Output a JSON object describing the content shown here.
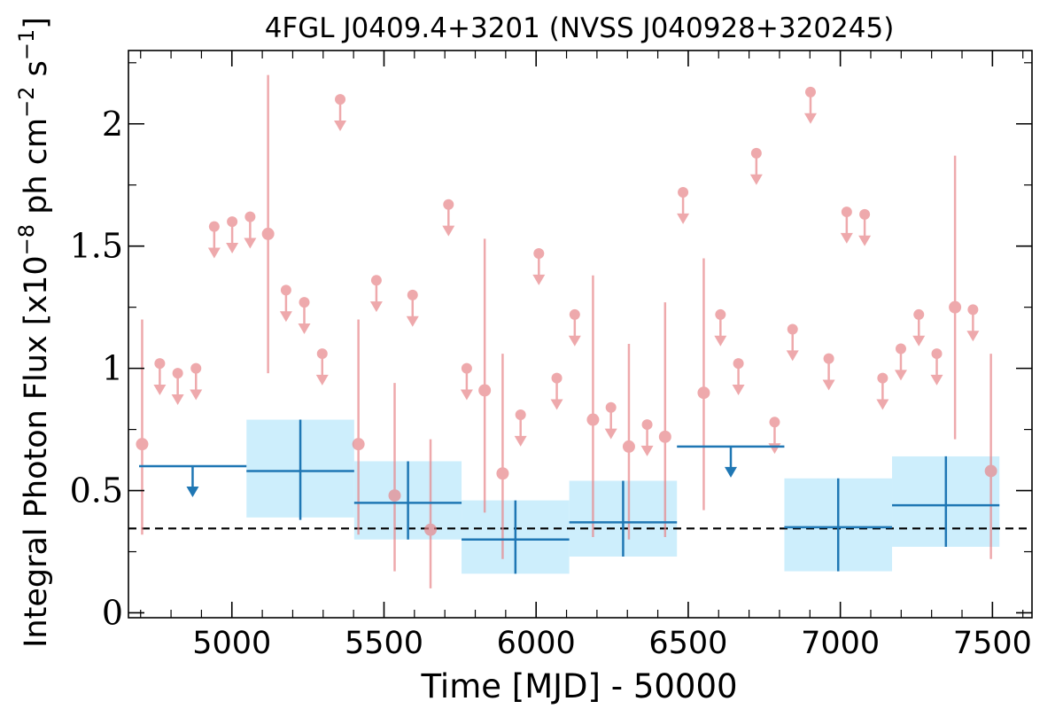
{
  "chart_data": {
    "type": "scatter",
    "title": "4FGL J0409.4+3201 (NVSS J040928+320245)",
    "xlabel": "Time [MJD] - 50000",
    "ylabel": "Integral Photon Flux [x10",
    "ylabel_exp1": "−8",
    "ylabel_mid": " ph cm",
    "ylabel_exp2": "−2",
    "ylabel_mid2": " s",
    "ylabel_exp3": "−1",
    "ylabel_end": "]",
    "xlim": [
      4660,
      7630
    ],
    "ylim": [
      -0.02,
      2.3
    ],
    "xticks": [
      5000,
      5500,
      6000,
      6500,
      7000,
      7500
    ],
    "xtick_labels": [
      "5000",
      "5500",
      "6000",
      "6500",
      "7000",
      "7500"
    ],
    "yticks": [
      0,
      0.5,
      1,
      1.5,
      2
    ],
    "ytick_labels": [
      "0",
      "0.5",
      "1",
      "1.5",
      "2"
    ],
    "reference_line": 0.345,
    "colors": {
      "short_bin": "#e8868a",
      "long_bin": "#1f77b4",
      "band": "#cdeefc",
      "reference": "#000000"
    },
    "short_bin_points": [
      {
        "x": 4705,
        "y": 0.69,
        "ul": false,
        "ylo": 0.32,
        "yhi": 1.2
      },
      {
        "x": 4763,
        "y": 1.02,
        "ul": true
      },
      {
        "x": 4822,
        "y": 0.98,
        "ul": true
      },
      {
        "x": 4882,
        "y": 1.0,
        "ul": true
      },
      {
        "x": 4942,
        "y": 1.58,
        "ul": true
      },
      {
        "x": 5001,
        "y": 1.6,
        "ul": true
      },
      {
        "x": 5060,
        "y": 1.62,
        "ul": true
      },
      {
        "x": 5119,
        "y": 1.55,
        "ul": false,
        "ylo": 0.98,
        "yhi": 2.2
      },
      {
        "x": 5178,
        "y": 1.32,
        "ul": true
      },
      {
        "x": 5238,
        "y": 1.27,
        "ul": true
      },
      {
        "x": 5297,
        "y": 1.06,
        "ul": true
      },
      {
        "x": 5356,
        "y": 2.1,
        "ul": true
      },
      {
        "x": 5416,
        "y": 0.69,
        "ul": false,
        "ylo": 0.32,
        "yhi": 1.2
      },
      {
        "x": 5475,
        "y": 1.36,
        "ul": true
      },
      {
        "x": 5535,
        "y": 0.48,
        "ul": false,
        "ylo": 0.17,
        "yhi": 0.94
      },
      {
        "x": 5594,
        "y": 1.3,
        "ul": true
      },
      {
        "x": 5653,
        "y": 0.34,
        "ul": false,
        "ylo": 0.1,
        "yhi": 0.71
      },
      {
        "x": 5712,
        "y": 1.67,
        "ul": true
      },
      {
        "x": 5772,
        "y": 1.0,
        "ul": true
      },
      {
        "x": 5831,
        "y": 0.91,
        "ul": false,
        "ylo": 0.41,
        "yhi": 1.53
      },
      {
        "x": 5890,
        "y": 0.57,
        "ul": false,
        "ylo": 0.22,
        "yhi": 1.06
      },
      {
        "x": 5949,
        "y": 0.81,
        "ul": true
      },
      {
        "x": 6009,
        "y": 1.47,
        "ul": true
      },
      {
        "x": 6068,
        "y": 0.96,
        "ul": true
      },
      {
        "x": 6127,
        "y": 1.22,
        "ul": true
      },
      {
        "x": 6187,
        "y": 0.79,
        "ul": false,
        "ylo": 0.31,
        "yhi": 1.38
      },
      {
        "x": 6246,
        "y": 0.84,
        "ul": true
      },
      {
        "x": 6305,
        "y": 0.68,
        "ul": false,
        "ylo": 0.3,
        "yhi": 1.1
      },
      {
        "x": 6365,
        "y": 0.77,
        "ul": true
      },
      {
        "x": 6424,
        "y": 0.72,
        "ul": false,
        "ylo": 0.31,
        "yhi": 1.27
      },
      {
        "x": 6483,
        "y": 1.72,
        "ul": true
      },
      {
        "x": 6551,
        "y": 0.9,
        "ul": false,
        "ylo": 0.42,
        "yhi": 1.45
      },
      {
        "x": 6606,
        "y": 1.22,
        "ul": true
      },
      {
        "x": 6665,
        "y": 1.02,
        "ul": true
      },
      {
        "x": 6724,
        "y": 1.88,
        "ul": true
      },
      {
        "x": 6784,
        "y": 0.78,
        "ul": true
      },
      {
        "x": 6843,
        "y": 1.16,
        "ul": true
      },
      {
        "x": 6902,
        "y": 2.13,
        "ul": true
      },
      {
        "x": 6962,
        "y": 1.04,
        "ul": true
      },
      {
        "x": 7021,
        "y": 1.64,
        "ul": true
      },
      {
        "x": 7080,
        "y": 1.63,
        "ul": true
      },
      {
        "x": 7139,
        "y": 0.96,
        "ul": true
      },
      {
        "x": 7199,
        "y": 1.08,
        "ul": true
      },
      {
        "x": 7258,
        "y": 1.22,
        "ul": true
      },
      {
        "x": 7317,
        "y": 1.06,
        "ul": true
      },
      {
        "x": 7377,
        "y": 1.25,
        "ul": false,
        "ylo": 0.71,
        "yhi": 1.87
      },
      {
        "x": 7436,
        "y": 1.24,
        "ul": true
      },
      {
        "x": 7495,
        "y": 0.58,
        "ul": false,
        "ylo": 0.22,
        "yhi": 1.06
      }
    ],
    "long_bin_points": [
      {
        "x0": 4695,
        "x1": 5048,
        "xc": 4871,
        "y": 0.6,
        "ul": true
      },
      {
        "x0": 5048,
        "x1": 5402,
        "xc": 5225,
        "y": 0.58,
        "ul": false,
        "ylo": 0.38,
        "yhi": 0.79,
        "band_lo": 0.39,
        "band_hi": 0.79
      },
      {
        "x0": 5402,
        "x1": 5755,
        "xc": 5579,
        "y": 0.45,
        "ul": false,
        "ylo": 0.3,
        "yhi": 0.62,
        "band_lo": 0.3,
        "band_hi": 0.62
      },
      {
        "x0": 5755,
        "x1": 6109,
        "xc": 5932,
        "y": 0.3,
        "ul": false,
        "ylo": 0.16,
        "yhi": 0.46,
        "band_lo": 0.16,
        "band_hi": 0.46
      },
      {
        "x0": 6109,
        "x1": 6463,
        "xc": 6286,
        "y": 0.37,
        "ul": false,
        "ylo": 0.23,
        "yhi": 0.54,
        "band_lo": 0.23,
        "band_hi": 0.54
      },
      {
        "x0": 6463,
        "x1": 6816,
        "xc": 6640,
        "y": 0.68,
        "ul": true
      },
      {
        "x0": 6816,
        "x1": 7170,
        "xc": 6993,
        "y": 0.35,
        "ul": false,
        "ylo": 0.17,
        "yhi": 0.55,
        "band_lo": 0.17,
        "band_hi": 0.55
      },
      {
        "x0": 7170,
        "x1": 7523,
        "xc": 7347,
        "y": 0.44,
        "ul": false,
        "ylo": 0.27,
        "yhi": 0.64,
        "band_lo": 0.27,
        "band_hi": 0.64
      }
    ]
  }
}
